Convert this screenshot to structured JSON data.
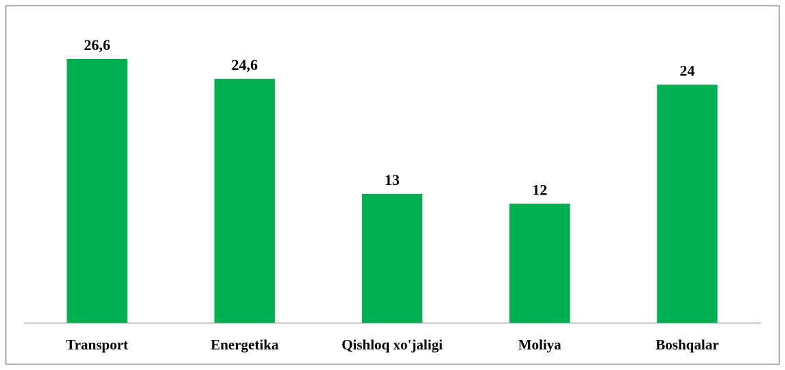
{
  "chart_data": {
    "type": "bar",
    "categories": [
      "Transport",
      "Energetika",
      "Qishloq xo'jaligi",
      "Moliya",
      "Boshqalar"
    ],
    "values": [
      26.6,
      24.6,
      13,
      12,
      24
    ],
    "value_labels": [
      "26,6",
      "24,6",
      "13",
      "12",
      "24"
    ],
    "color": "#00b050"
  }
}
